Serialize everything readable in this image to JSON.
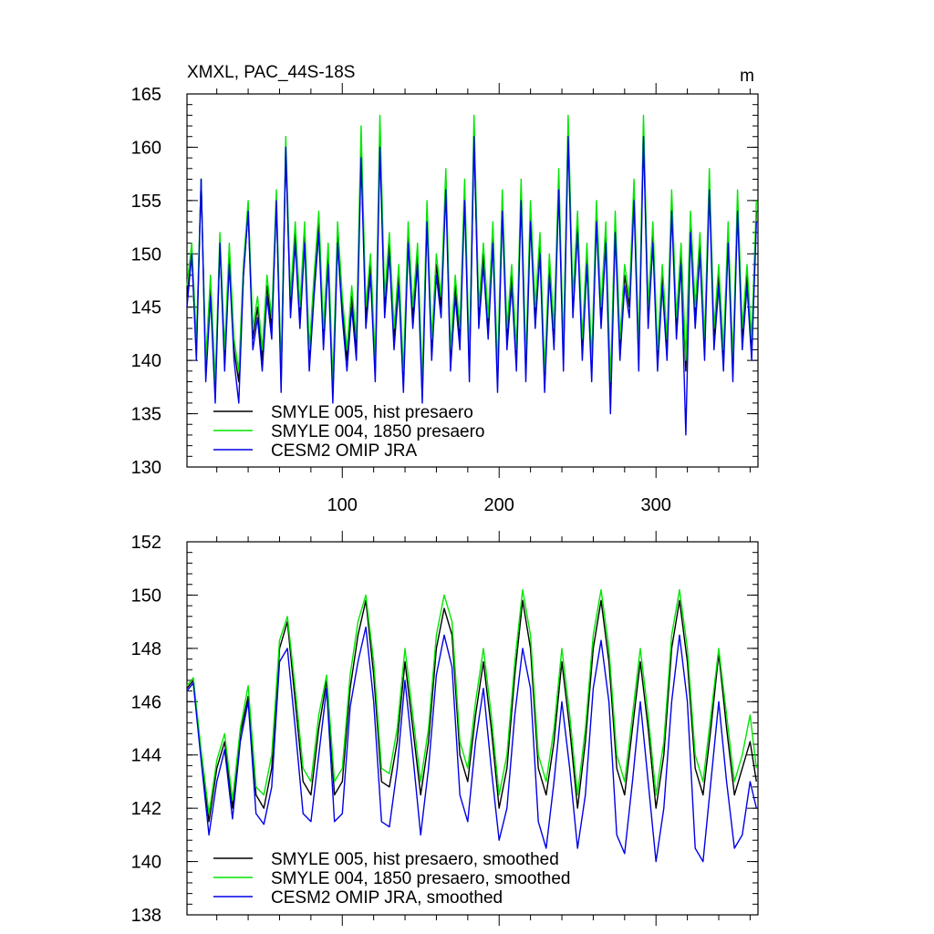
{
  "colors": {
    "black": "#000000",
    "green": "#00e600",
    "blue": "#0000e6"
  },
  "chart_data": [
    {
      "type": "line",
      "title": "XMXL, PAC_44S-18S",
      "units": "m",
      "xlim": [
        1,
        365
      ],
      "ylim": [
        130,
        165
      ],
      "y_ticks": [
        130,
        135,
        140,
        145,
        150,
        155,
        160,
        165
      ],
      "x_tick_labels": [
        "100",
        "200",
        "300"
      ],
      "x_ticks": [
        100,
        200,
        300
      ],
      "legend": "bottom-left",
      "x": [
        1,
        4,
        7,
        10,
        13,
        16,
        19,
        22,
        25,
        28,
        31,
        34,
        37,
        40,
        43,
        46,
        49,
        52,
        55,
        58,
        61,
        64,
        67,
        70,
        73,
        76,
        79,
        82,
        85,
        88,
        91,
        94,
        97,
        100,
        103,
        106,
        109,
        112,
        115,
        118,
        121,
        124,
        127,
        130,
        133,
        136,
        139,
        142,
        145,
        148,
        151,
        154,
        157,
        160,
        163,
        166,
        169,
        172,
        175,
        178,
        181,
        184,
        187,
        190,
        193,
        196,
        199,
        202,
        205,
        208,
        211,
        214,
        217,
        220,
        223,
        226,
        229,
        232,
        235,
        238,
        241,
        244,
        247,
        250,
        253,
        256,
        259,
        262,
        265,
        268,
        271,
        274,
        277,
        280,
        283,
        286,
        289,
        292,
        295,
        298,
        301,
        304,
        307,
        310,
        313,
        316,
        319,
        322,
        325,
        328,
        331,
        334,
        337,
        340,
        343,
        346,
        349,
        352,
        355,
        358,
        361,
        364
      ],
      "series": [
        {
          "name": "SMYLE 005, hist presaero",
          "color": "black",
          "values": [
            146,
            150,
            141,
            157,
            139,
            147,
            137,
            151,
            140,
            150,
            141,
            138,
            148,
            154,
            142,
            145,
            140,
            147,
            143,
            155,
            138,
            160,
            145,
            152,
            144,
            152,
            140,
            147,
            153,
            142,
            150,
            137,
            152,
            145,
            140,
            146,
            141,
            160,
            144,
            149,
            139,
            161,
            145,
            151,
            142,
            148,
            138,
            152,
            144,
            150,
            137,
            154,
            141,
            149,
            145,
            157,
            140,
            147,
            142,
            156,
            139,
            161,
            144,
            150,
            143,
            152,
            138,
            155,
            142,
            148,
            140,
            156,
            139,
            154,
            144,
            151,
            138,
            149,
            142,
            157,
            140,
            162,
            145,
            153,
            141,
            150,
            139,
            154,
            144,
            152,
            137,
            153,
            141,
            148,
            145,
            156,
            140,
            162,
            144,
            152,
            140,
            148,
            141,
            155,
            143,
            150,
            139,
            153,
            144,
            151,
            141,
            157,
            142,
            148,
            140,
            152,
            139,
            155,
            142,
            148,
            141,
            154
          ]
        },
        {
          "name": "SMYLE 004, 1850 presaero",
          "color": "green",
          "values": [
            147,
            151,
            142,
            157,
            140,
            148,
            138,
            152,
            141,
            151,
            142,
            139,
            149,
            155,
            143,
            146,
            141,
            148,
            144,
            156,
            139,
            161,
            146,
            153,
            145,
            153,
            141,
            148,
            154,
            143,
            151,
            138,
            153,
            146,
            141,
            147,
            142,
            162,
            145,
            150,
            140,
            163,
            146,
            152,
            143,
            149,
            139,
            153,
            145,
            151,
            138,
            155,
            142,
            150,
            146,
            158,
            141,
            148,
            143,
            157,
            140,
            163,
            145,
            151,
            144,
            153,
            139,
            156,
            143,
            149,
            141,
            157,
            140,
            155,
            145,
            152,
            139,
            150,
            143,
            158,
            141,
            163,
            146,
            154,
            142,
            151,
            140,
            155,
            145,
            153,
            138,
            154,
            142,
            149,
            146,
            157,
            141,
            163,
            145,
            153,
            141,
            149,
            142,
            156,
            144,
            151,
            140,
            154,
            145,
            152,
            142,
            158,
            143,
            149,
            141,
            153,
            140,
            156,
            143,
            149,
            142,
            155
          ]
        },
        {
          "name": "CESM2 OMIP JRA",
          "color": "blue",
          "values": [
            145,
            150,
            140,
            157,
            138,
            146,
            136,
            151,
            139,
            149,
            140,
            136,
            148,
            154,
            141,
            144,
            139,
            146,
            142,
            155,
            137,
            160,
            144,
            151,
            143,
            151,
            139,
            146,
            152,
            141,
            149,
            136,
            151,
            144,
            139,
            145,
            140,
            159,
            143,
            148,
            138,
            160,
            144,
            150,
            141,
            147,
            137,
            151,
            143,
            149,
            136,
            153,
            140,
            148,
            144,
            156,
            139,
            146,
            141,
            155,
            138,
            161,
            143,
            149,
            142,
            151,
            137,
            154,
            141,
            147,
            139,
            155,
            138,
            153,
            143,
            150,
            137,
            148,
            141,
            156,
            139,
            161,
            144,
            152,
            140,
            149,
            138,
            153,
            143,
            151,
            135,
            152,
            140,
            147,
            144,
            155,
            139,
            161,
            143,
            151,
            139,
            147,
            140,
            154,
            142,
            149,
            133,
            152,
            143,
            150,
            140,
            156,
            141,
            147,
            139,
            151,
            138,
            154,
            141,
            147,
            140,
            153
          ]
        }
      ]
    },
    {
      "type": "line",
      "title": "",
      "xlim": [
        1,
        365
      ],
      "ylim": [
        138,
        152
      ],
      "y_ticks": [
        138,
        140,
        142,
        144,
        146,
        148,
        150,
        152
      ],
      "x_ticks": [
        100,
        200,
        300
      ],
      "legend": "bottom-left",
      "x": [
        1,
        5,
        10,
        15,
        20,
        25,
        30,
        35,
        40,
        45,
        50,
        55,
        60,
        65,
        70,
        75,
        80,
        85,
        90,
        95,
        100,
        105,
        110,
        115,
        120,
        125,
        130,
        135,
        140,
        145,
        150,
        155,
        160,
        165,
        170,
        175,
        180,
        185,
        190,
        195,
        200,
        205,
        210,
        215,
        220,
        225,
        230,
        235,
        240,
        245,
        250,
        255,
        260,
        265,
        270,
        275,
        280,
        285,
        290,
        295,
        300,
        305,
        310,
        315,
        320,
        325,
        330,
        335,
        340,
        345,
        350,
        355,
        360,
        364
      ],
      "series": [
        {
          "name": "SMYLE 005, hist presaero, smoothed",
          "color": "black",
          "values": [
            146.5,
            146.8,
            144.0,
            141.5,
            143.5,
            144.5,
            142.0,
            144.8,
            146.2,
            142.5,
            142.0,
            143.5,
            148.0,
            149.0,
            146.0,
            143.0,
            142.5,
            145.0,
            146.8,
            142.5,
            143.0,
            146.5,
            148.5,
            149.8,
            147.0,
            143.0,
            142.8,
            144.5,
            147.5,
            145.0,
            142.5,
            144.5,
            148.0,
            149.5,
            148.5,
            144.0,
            143.0,
            145.5,
            147.5,
            145.0,
            142.0,
            143.5,
            147.0,
            149.8,
            148.0,
            143.5,
            142.5,
            144.5,
            147.5,
            145.0,
            142.0,
            144.5,
            148.0,
            149.8,
            147.5,
            143.5,
            142.5,
            145.0,
            147.5,
            145.0,
            142.0,
            144.0,
            148.0,
            149.8,
            147.5,
            143.5,
            142.5,
            145.0,
            147.8,
            145.0,
            142.5,
            143.5,
            144.5,
            143.0
          ]
        },
        {
          "name": "SMYLE 004, 1850 presaero, smoothed",
          "color": "green",
          "values": [
            146.6,
            146.9,
            144.2,
            141.8,
            143.8,
            144.8,
            142.3,
            145.0,
            146.6,
            142.8,
            142.5,
            144.0,
            148.3,
            149.2,
            146.5,
            143.5,
            143.0,
            145.5,
            147.0,
            143.0,
            143.5,
            147.0,
            149.0,
            150.0,
            147.5,
            143.5,
            143.3,
            145.0,
            148.0,
            145.5,
            143.0,
            145.0,
            148.5,
            150.0,
            149.0,
            144.5,
            143.5,
            146.0,
            148.0,
            145.5,
            142.5,
            144.0,
            147.5,
            150.2,
            148.5,
            144.0,
            143.0,
            145.0,
            148.0,
            145.5,
            142.5,
            145.0,
            148.5,
            150.2,
            148.0,
            144.0,
            143.0,
            145.5,
            148.0,
            145.5,
            142.5,
            144.5,
            148.5,
            150.2,
            148.0,
            144.0,
            143.0,
            145.5,
            148.0,
            145.5,
            143.0,
            144.0,
            145.5,
            143.5
          ]
        },
        {
          "name": "CESM2 OMIP JRA, smoothed",
          "color": "blue",
          "values": [
            146.4,
            146.7,
            143.8,
            141.0,
            143.0,
            144.2,
            141.6,
            144.5,
            146.0,
            141.8,
            141.4,
            142.8,
            147.5,
            148.0,
            145.0,
            141.8,
            141.5,
            144.0,
            146.5,
            141.5,
            141.8,
            145.8,
            147.5,
            148.8,
            146.0,
            141.5,
            141.3,
            143.5,
            146.8,
            144.0,
            141.0,
            143.5,
            147.0,
            148.5,
            147.3,
            142.5,
            141.5,
            144.5,
            146.5,
            143.5,
            140.8,
            142.0,
            145.5,
            148.0,
            146.5,
            141.5,
            140.5,
            143.0,
            146.0,
            143.5,
            140.5,
            142.5,
            146.5,
            148.3,
            146.0,
            141.0,
            140.3,
            143.0,
            146.0,
            143.0,
            140.0,
            142.0,
            146.0,
            148.5,
            146.0,
            140.5,
            140.0,
            143.0,
            146.0,
            143.0,
            140.5,
            141.0,
            143.0,
            142.0
          ]
        }
      ]
    }
  ]
}
